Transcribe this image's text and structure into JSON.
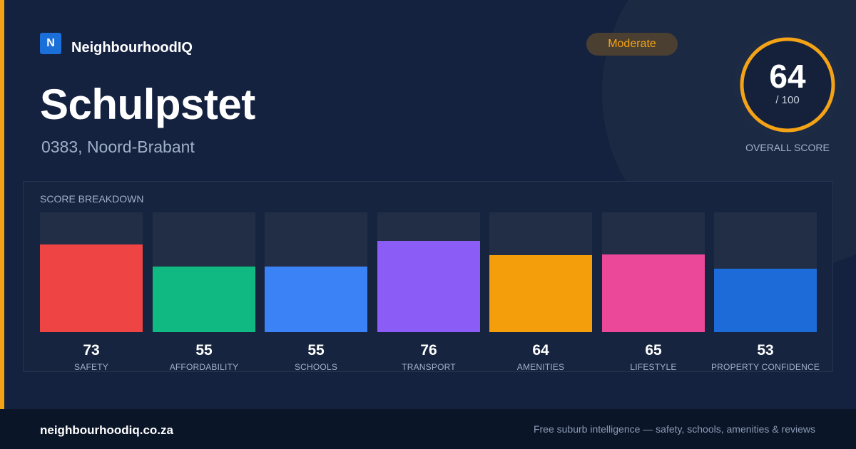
{
  "brand": {
    "logo_letter": "N",
    "name": "NeighbourhoodIQ"
  },
  "suburb": {
    "name": "Schulpstet",
    "location": "0383, Noord-Brabant"
  },
  "badge": "Moderate",
  "overall": {
    "value": "64",
    "max": "/ 100",
    "label": "OVERALL SCORE",
    "fraction": 0.64
  },
  "breakdown_title": "SCORE BREAKDOWN",
  "colors": {
    "accent": "#f5a316",
    "safety": "#ef4444",
    "affordability": "#10b981",
    "schools": "#3b82f6",
    "transport": "#8b5cf6",
    "amenities": "#f59e0b",
    "lifestyle": "#ec4899",
    "property_confidence": "#1d6bd8"
  },
  "chart_data": {
    "type": "bar",
    "title": "SCORE BREAKDOWN",
    "categories": [
      "SAFETY",
      "AFFORDABILITY",
      "SCHOOLS",
      "TRANSPORT",
      "AMENITIES",
      "LIFESTYLE",
      "PROPERTY CONFIDENCE"
    ],
    "values": [
      73,
      55,
      55,
      76,
      64,
      65,
      53
    ],
    "ylim": [
      0,
      100
    ],
    "colors": [
      "#ef4444",
      "#10b981",
      "#3b82f6",
      "#8b5cf6",
      "#f59e0b",
      "#ec4899",
      "#1d6bd8"
    ]
  },
  "footer": {
    "url": "neighbourhoodiq.co.za",
    "tagline": "Free suburb intelligence — safety, schools, amenities & reviews"
  }
}
